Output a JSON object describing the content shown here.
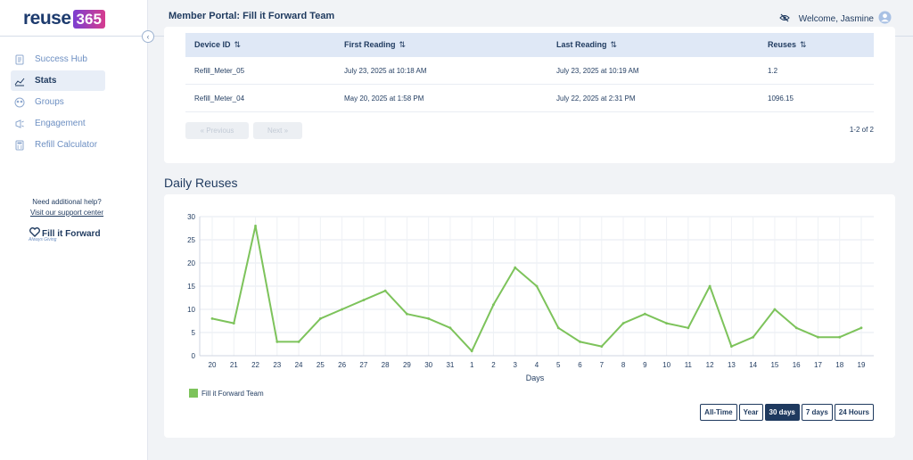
{
  "brand": {
    "logo_text": "reuse",
    "logo_number": "365"
  },
  "header": {
    "title": "Member Portal: Fill it Forward Team",
    "welcome": "Welcome, Jasmine"
  },
  "sidebar": {
    "items": [
      {
        "label": "Success Hub",
        "icon": "document-icon",
        "active": false
      },
      {
        "label": "Stats",
        "icon": "chart-icon",
        "active": true
      },
      {
        "label": "Groups",
        "icon": "groups-icon",
        "active": false
      },
      {
        "label": "Engagement",
        "icon": "engagement-icon",
        "active": false
      },
      {
        "label": "Refill Calculator",
        "icon": "calculator-icon",
        "active": false
      }
    ],
    "help_text": "Need additional help?",
    "help_link": "Visit our support center",
    "partner_logo": "Fill it Forward",
    "partner_tagline": "Always Giving"
  },
  "table": {
    "columns": [
      "Device ID",
      "First Reading",
      "Last Reading",
      "Reuses"
    ],
    "sort_glyph": "⇅",
    "rows": [
      {
        "device_id": "Refill_Meter_05",
        "first": "July 23, 2025 at 10:18 AM",
        "last": "July 23, 2025 at 10:19 AM",
        "reuses": "1.2"
      },
      {
        "device_id": "Refill_Meter_04",
        "first": "May 20, 2025 at 1:58 PM",
        "last": "July 22, 2025 at 2:31 PM",
        "reuses": "1096.15"
      }
    ],
    "previous_label": "« Previous",
    "next_label": "Next »",
    "page_count": "1-2 of 2"
  },
  "section_title": "Daily Reuses",
  "chart_data": {
    "type": "line",
    "title": "",
    "xlabel": "Days",
    "ylabel": "",
    "categories": [
      "20",
      "21",
      "22",
      "23",
      "24",
      "25",
      "26",
      "27",
      "28",
      "29",
      "30",
      "31",
      "1",
      "2",
      "3",
      "4",
      "5",
      "6",
      "7",
      "8",
      "9",
      "10",
      "11",
      "12",
      "13",
      "14",
      "15",
      "16",
      "17",
      "18",
      "19"
    ],
    "series": [
      {
        "name": "Fill it Forward Team",
        "color": "#7dc35b",
        "values": [
          8,
          7,
          28,
          3,
          3,
          8,
          10,
          12,
          14,
          9,
          8,
          6,
          1,
          11,
          19,
          15,
          6,
          3,
          2,
          7,
          9,
          7,
          6,
          15,
          2,
          4,
          10,
          6,
          4,
          4,
          6
        ]
      }
    ],
    "ylim": [
      0,
      30
    ],
    "yticks": [
      0,
      5,
      10,
      15,
      20,
      25,
      30
    ],
    "grid": true,
    "legend": "bottom-left"
  },
  "range_buttons": [
    {
      "label": "All-Time",
      "active": false
    },
    {
      "label": "Year",
      "active": false
    },
    {
      "label": "30 days",
      "active": true
    },
    {
      "label": "7 days",
      "active": false
    },
    {
      "label": "24 Hours",
      "active": false
    }
  ]
}
